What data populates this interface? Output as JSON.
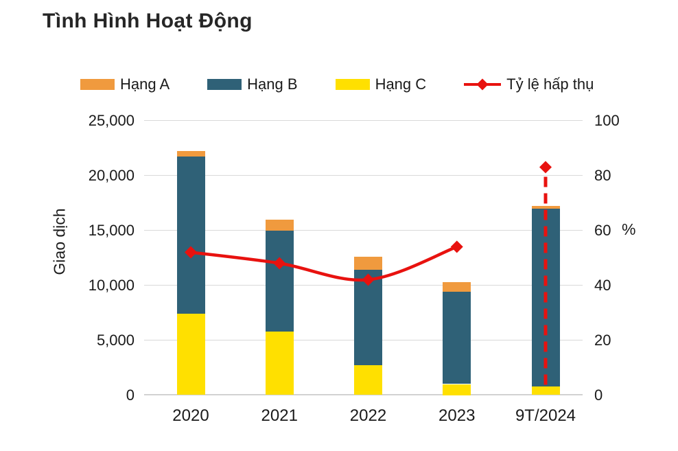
{
  "title": "Tình Hình Hoạt Động",
  "legend": {
    "items": [
      {
        "label": "Hạng A",
        "swatch": "bar",
        "color": "#F09A3E"
      },
      {
        "label": "Hạng B",
        "swatch": "bar",
        "color": "#2F6177"
      },
      {
        "label": "Hạng C",
        "swatch": "bar",
        "color": "#FFE000"
      },
      {
        "label": "Tỷ lệ hấp thụ",
        "swatch": "line-diamond",
        "color": "#E8120F"
      }
    ]
  },
  "axes": {
    "left": {
      "title": "Giao dịch",
      "max": 25000,
      "ticks": [
        "0",
        "5,000",
        "10,000",
        "15,000",
        "20,000",
        "25,000"
      ]
    },
    "right": {
      "title": "%",
      "max": 100,
      "ticks": [
        "0",
        "20",
        "40",
        "60",
        "80",
        "100"
      ]
    },
    "x": {
      "categories": [
        "2020",
        "2021",
        "2022",
        "2023",
        "9T/2024"
      ]
    }
  },
  "chart_data": {
    "type": "bar",
    "subtype": "stacked-bars-with-line",
    "title": "Tình Hình Hoạt Động",
    "categories": [
      "2020",
      "2021",
      "2022",
      "2023",
      "9T/2024"
    ],
    "series": [
      {
        "name": "Hạng C",
        "type": "bar",
        "stack_order": 1,
        "color": "#FFE000",
        "values": [
          7400,
          5800,
          2700,
          1000,
          800
        ]
      },
      {
        "name": "Hạng B",
        "type": "bar",
        "stack_order": 2,
        "color": "#2F6177",
        "values": [
          14300,
          9200,
          8700,
          8400,
          16200
        ]
      },
      {
        "name": "Hạng A",
        "type": "bar",
        "stack_order": 3,
        "color": "#F09A3E",
        "values": [
          500,
          1000,
          1200,
          900,
          250
        ]
      },
      {
        "name": "Tỷ lệ hấp thụ",
        "type": "line",
        "axis": "right",
        "color": "#E8120F",
        "marker": "diamond",
        "values": [
          52,
          48,
          42,
          54,
          83
        ],
        "solid_through_index": 3,
        "dashed_drop_index": 4,
        "note": "last point drawn as lone diamond above a vertical dashed drop line"
      }
    ],
    "stack_totals": [
      22200,
      16000,
      12600,
      10300,
      17250
    ],
    "ylabel_left": "Giao dịch",
    "ylabel_right": "%",
    "ylim_left": [
      0,
      25000
    ],
    "ylim_right": [
      0,
      100
    ],
    "grid": true,
    "legend_position": "top"
  },
  "colors": {
    "hang_a": "#F09A3E",
    "hang_b": "#2F6177",
    "hang_c": "#FFE000",
    "line": "#E8120F",
    "gridline": "#D9D9D9",
    "axis_line": "#D2D2D2",
    "text": "#1A1A1A",
    "title": "#262626",
    "background": "#FFFFFF"
  }
}
